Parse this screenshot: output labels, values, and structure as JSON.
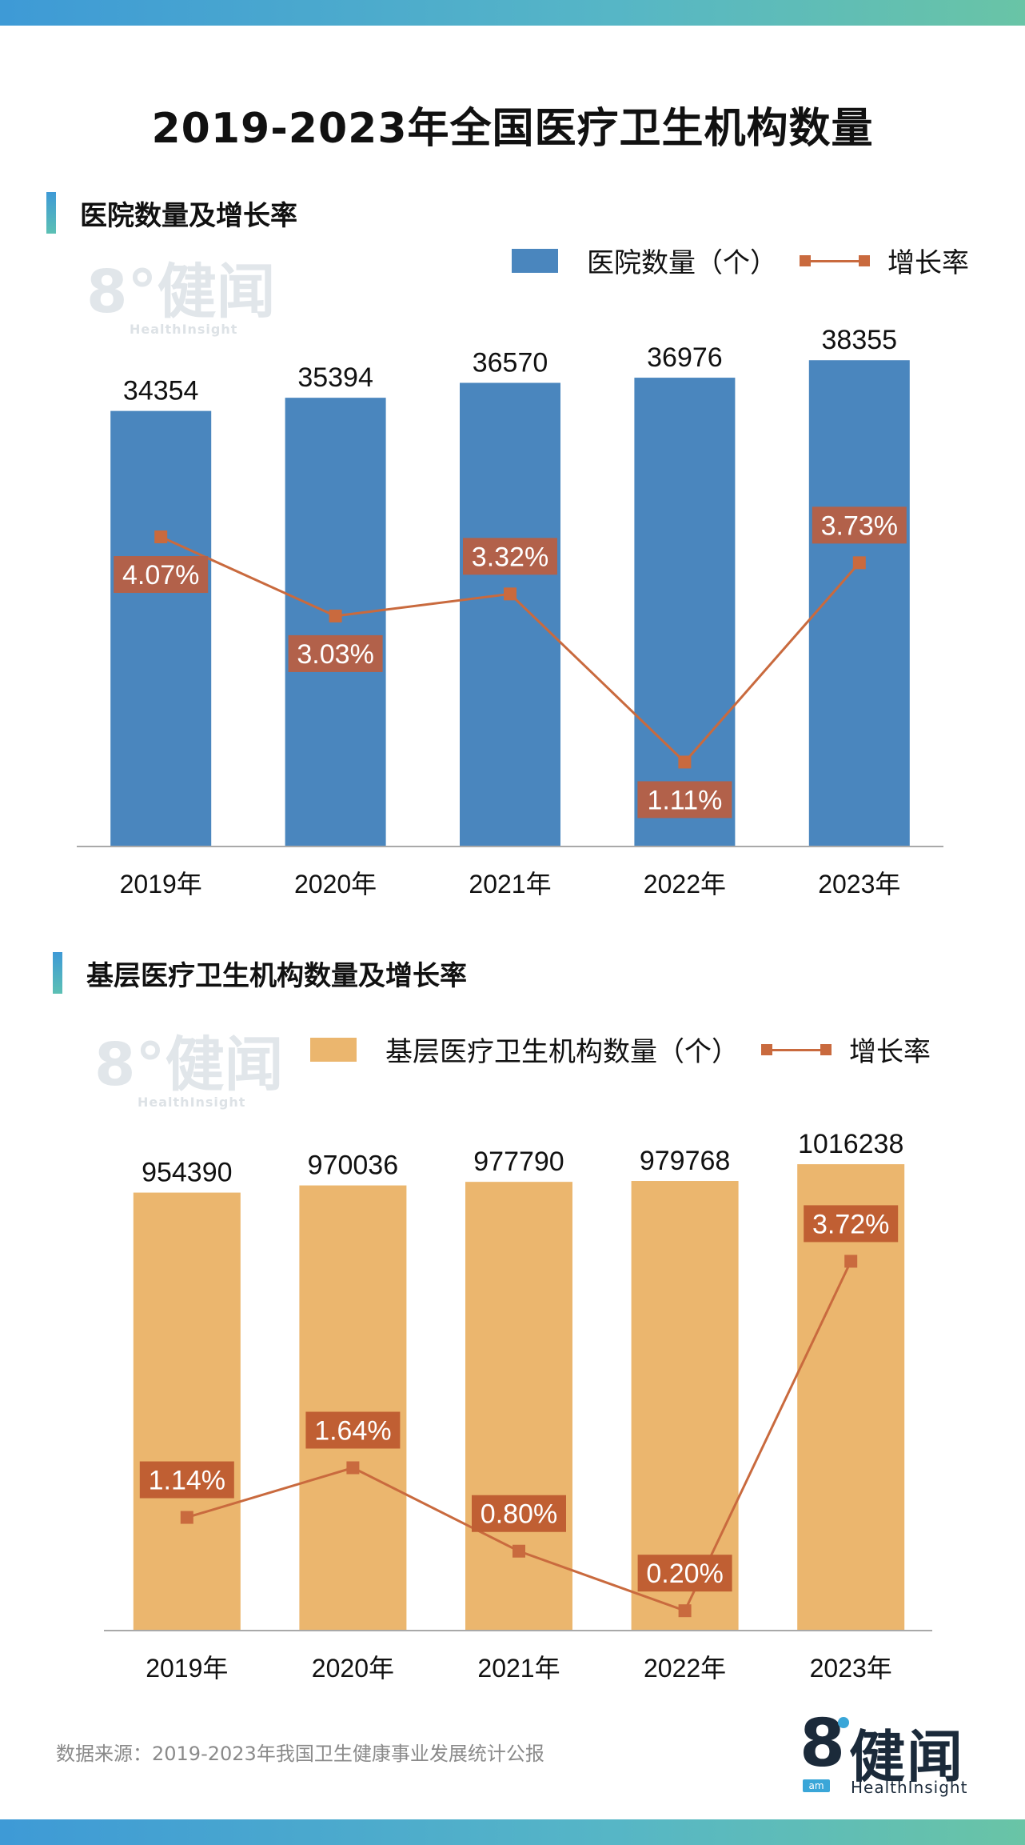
{
  "title": "2019-2023年全国医疗卫生机构数量",
  "watermark": {
    "cn": "8°健闻",
    "en": "HealthInsight"
  },
  "chart_data": [
    {
      "type": "bar",
      "section_title": "医院数量及增长率",
      "categories": [
        "2019年",
        "2020年",
        "2021年",
        "2022年",
        "2023年"
      ],
      "series": [
        {
          "name": "医院数量（个）",
          "kind": "bar",
          "values": [
            34354,
            35394,
            36570,
            36976,
            38355
          ],
          "labels": [
            "34354",
            "35394",
            "36570",
            "36976",
            "38355"
          ]
        },
        {
          "name": "增长率",
          "kind": "line",
          "values": [
            4.07,
            3.03,
            3.32,
            1.11,
            3.73
          ],
          "labels": [
            "4.07%",
            "3.03%",
            "3.32%",
            "1.11%",
            "3.73%"
          ]
        }
      ],
      "bar_ylim": [
        0,
        39000
      ],
      "line_ylim": [
        0,
        6.5
      ],
      "label_side": [
        "below",
        "below",
        "above",
        "below",
        "above"
      ],
      "colors": {
        "bar": "#4a86be",
        "line": "#c96a3e",
        "label_bg": "#b2614a"
      }
    },
    {
      "type": "bar",
      "section_title": "基层医疗卫生机构数量及增长率",
      "categories": [
        "2019年",
        "2020年",
        "2021年",
        "2022年",
        "2023年"
      ],
      "series": [
        {
          "name": "基层医疗卫生机构数量（个）",
          "kind": "bar",
          "values": [
            954390,
            970036,
            977790,
            979768,
            1016238
          ],
          "labels": [
            "954390",
            "970036",
            "977790",
            "979768",
            "1016238"
          ]
        },
        {
          "name": "增长率",
          "kind": "line",
          "values": [
            1.14,
            1.64,
            0.8,
            0.2,
            3.72
          ],
          "labels": [
            "1.14%",
            "1.64%",
            "0.80%",
            "0.20%",
            "3.72%"
          ]
        }
      ],
      "bar_ylim": [
        0,
        1060000
      ],
      "line_ylim": [
        0,
        4.9
      ],
      "label_side": [
        "above",
        "above",
        "above",
        "above",
        "above"
      ],
      "colors": {
        "bar": "#ebb66e",
        "line": "#c96a3e",
        "label_bg": "#c05f33"
      }
    }
  ],
  "source": "数据来源：2019-2023年我国卫生健康事业发展统计公报",
  "logo": {
    "cn": "健闻",
    "eight": "8",
    "am": "am",
    "en": "HealthInsight"
  }
}
